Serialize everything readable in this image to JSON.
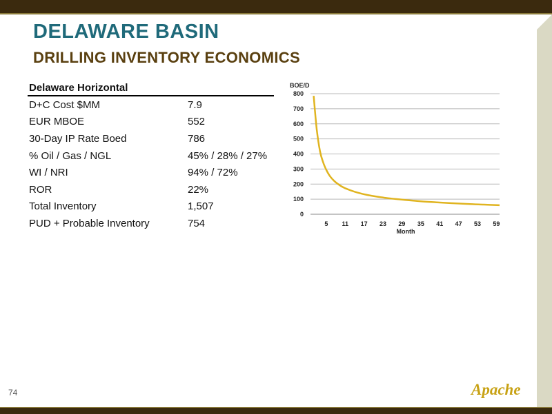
{
  "slide": {
    "title": "DELAWARE BASIN",
    "subtitle": "DRILLING INVENTORY ECONOMICS",
    "page_number": "74",
    "logo_text": "Apache"
  },
  "table": {
    "header": "Delaware Horizontal",
    "rows": [
      {
        "label": "D+C Cost $MM",
        "value": "7.9"
      },
      {
        "label": "EUR MBOE",
        "value": "552"
      },
      {
        "label": "30-Day IP Rate Boed",
        "value": "786"
      },
      {
        "label": "% Oil / Gas / NGL",
        "value": "45% / 28% / 27%"
      },
      {
        "label": "WI / NRI",
        "value": "94% / 72%"
      },
      {
        "label": "ROR",
        "value": "22%"
      },
      {
        "label": "Total Inventory",
        "value": "1,507"
      },
      {
        "label": "PUD + Probable Inventory",
        "value": "754"
      }
    ]
  },
  "chart_data": {
    "type": "line",
    "title": "",
    "xlabel": "Month",
    "ylabel": "BOE/D",
    "xlim": [
      0,
      60
    ],
    "ylim": [
      0,
      800
    ],
    "x_ticks": [
      5,
      11,
      17,
      23,
      29,
      35,
      41,
      47,
      53,
      59
    ],
    "y_ticks": [
      0,
      100,
      200,
      300,
      400,
      500,
      600,
      700,
      800
    ],
    "grid": "horizontal",
    "line_color": "#e0b420",
    "series": [
      {
        "x": [
          1,
          2,
          3,
          4,
          5,
          6,
          7,
          8,
          10,
          12,
          15,
          18,
          21,
          24,
          27,
          30,
          35,
          40,
          45,
          50,
          55,
          60
        ],
        "values": [
          786,
          560,
          420,
          345,
          295,
          258,
          232,
          212,
          183,
          164,
          143,
          128,
          117,
          108,
          101,
          95,
          86,
          79,
          73,
          68,
          64,
          60
        ]
      }
    ]
  }
}
